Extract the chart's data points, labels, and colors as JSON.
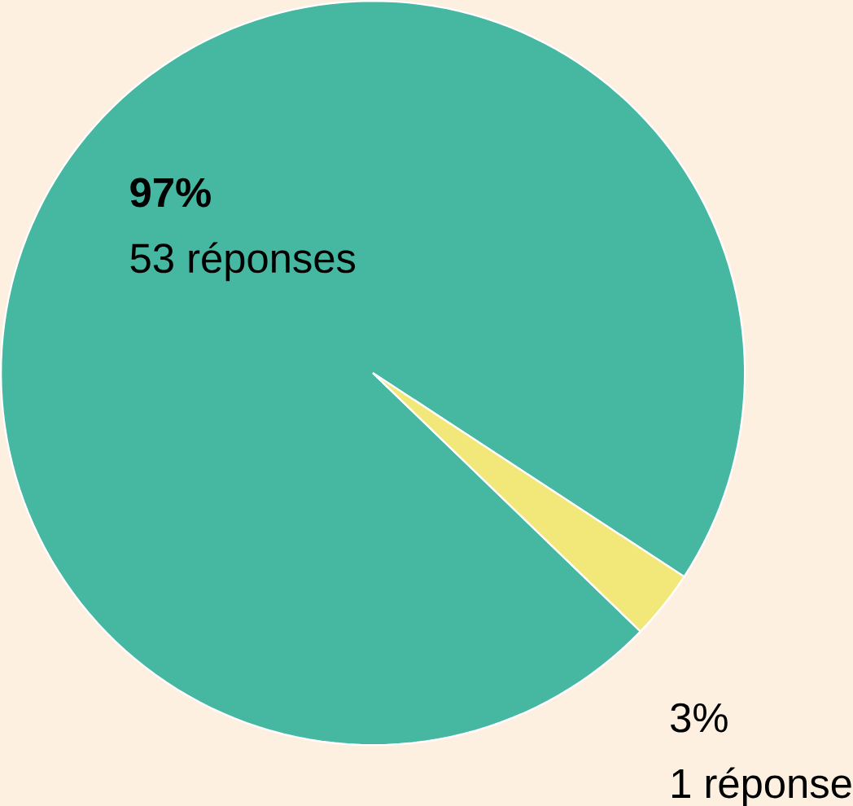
{
  "chart_data": {
    "type": "pie",
    "categories": [
      null,
      null
    ],
    "values": [
      97,
      3
    ],
    "colors": [
      "#46b7a1",
      "#f2e87a"
    ],
    "value_labels": [
      "97%",
      "3%"
    ],
    "annotations": [
      "53 réponses",
      "1 réponse"
    ]
  }
}
